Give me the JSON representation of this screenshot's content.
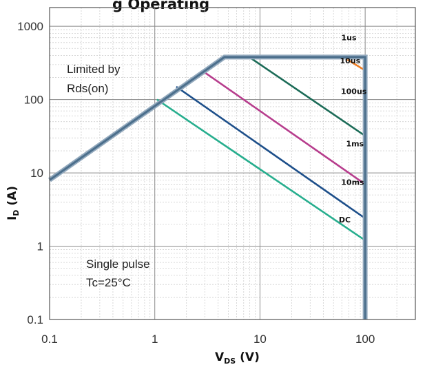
{
  "chart_data": {
    "type": "line",
    "title": "...ng Area (Safe Operating Area) — partially visible",
    "title_visible": "g     Operating      ",
    "xlabel": {
      "main": "V",
      "sub": "DS",
      "unit": " (V)"
    },
    "ylabel": {
      "main": "I",
      "sub": "D",
      "unit": " (A)"
    },
    "x_scale": "log",
    "y_scale": "log",
    "xlim": [
      0.1,
      300
    ],
    "ylim": [
      0.1,
      1800
    ],
    "x_ticks": [
      0.1,
      1,
      10,
      100
    ],
    "x_tick_labels": [
      "0.1",
      "1",
      "10",
      "100"
    ],
    "y_ticks": [
      0.1,
      1,
      10,
      100,
      1000
    ],
    "y_tick_labels": [
      "0.1",
      "1",
      "10",
      "100",
      "1000"
    ],
    "grid": true,
    "annotations": [
      {
        "lines": [
          "Limited by",
          "Rds(on)"
        ]
      },
      {
        "lines": [
          "Single pulse",
          "Tc=25°C"
        ]
      }
    ],
    "series": [
      {
        "name": "1us",
        "color": "#5b82a5",
        "label_at": [
          70,
          700
        ],
        "points": [
          [
            0.1,
            8
          ],
          [
            4.6,
            380
          ],
          [
            100,
            380
          ]
        ]
      },
      {
        "name": "10us",
        "color": "#ef7d22",
        "label_at": [
          72,
          340
        ],
        "points": [
          [
            60,
            390
          ],
          [
            100,
            250
          ]
        ]
      },
      {
        "name": "100us",
        "color": "#1b6b57",
        "label_at": [
          78,
          130
        ],
        "points": [
          [
            7.5,
            400
          ],
          [
            100,
            32
          ]
        ]
      },
      {
        "name": "1ms",
        "color": "#b73d8d",
        "label_at": [
          80,
          25
        ],
        "points": [
          [
            2.8,
            250
          ],
          [
            100,
            7
          ]
        ]
      },
      {
        "name": "10ms",
        "color": "#1d4f8a",
        "label_at": [
          76,
          7.5
        ],
        "points": [
          [
            1.6,
            150
          ],
          [
            100,
            2.4
          ]
        ]
      },
      {
        "name": "DC",
        "color": "#27ae8e",
        "label_at": [
          64,
          2.3
        ],
        "points": [
          [
            1.05,
            100
          ],
          [
            100,
            1.2
          ]
        ]
      }
    ],
    "limit_line": {
      "color": "#4c6f8c",
      "points": [
        [
          0.1,
          8
        ],
        [
          4.6,
          380
        ],
        [
          100,
          380
        ],
        [
          100,
          0.1
        ]
      ]
    }
  }
}
